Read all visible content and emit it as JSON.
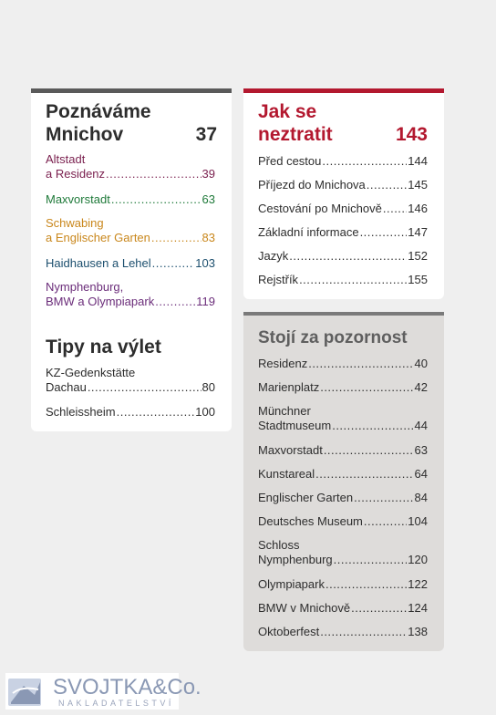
{
  "colors": {
    "left_bar": "#5a5a5a",
    "right_bar": "#b3182f",
    "gray_bar": "#7a7a7a",
    "text_dark": "#2d2d2d",
    "accent_red": "#b3182f",
    "altstadt": "#7a1f4e",
    "maxvorstadt": "#1f7a3a",
    "schwabing": "#c9871c",
    "haidhausen": "#1c4f6e",
    "nymphenburg": "#6b2d7a"
  },
  "left_card": {
    "title_line1": "Poznáváme",
    "title_line2": "Mnichov",
    "title_page": "37",
    "entries": [
      {
        "line1": "Altstadt",
        "line2": "a Residenz",
        "page": "39"
      },
      {
        "line1": "Maxvorstadt",
        "page": "63"
      },
      {
        "line1": "Schwabing",
        "line2": "a Englischer Garten",
        "page": "83"
      },
      {
        "line1": "Haidhausen a Lehel",
        "page": "103"
      },
      {
        "line1": "Nymphenburg,",
        "line2": "BMW a Olympiapark",
        "page": "119"
      }
    ],
    "tips_title": "Tipy na výlet",
    "tips": [
      {
        "line1": "KZ-Gedenkstätte",
        "line2": "Dachau",
        "page": "80"
      },
      {
        "line1": "Schleissheim",
        "page": "100"
      }
    ]
  },
  "right_card": {
    "title_line1": "Jak se",
    "title_line2": "neztratit",
    "title_page": "143",
    "entries": [
      {
        "line1": "Před cestou",
        "page": "144"
      },
      {
        "line1": "Příjezd do Mnichova",
        "page": "145"
      },
      {
        "line1": "Cestování po Mnichově",
        "page": "146"
      },
      {
        "line1": "Základní informace",
        "page": "147"
      },
      {
        "line1": "Jazyk",
        "page": "152"
      },
      {
        "line1": "Rejstřík",
        "page": "155"
      }
    ]
  },
  "gray_card": {
    "title": "Stojí za pozornost",
    "entries": [
      {
        "line1": "Residenz",
        "page": "40"
      },
      {
        "line1": "Marienplatz",
        "page": "42"
      },
      {
        "line1": "Münchner",
        "line2": "Stadtmuseum",
        "page": "44"
      },
      {
        "line1": "Maxvorstadt",
        "page": "63"
      },
      {
        "line1": "Kunstareal",
        "page": "64"
      },
      {
        "line1": "Englischer Garten",
        "page": "84"
      },
      {
        "line1": "Deutsches Museum",
        "page": "104"
      },
      {
        "line1": "Schloss",
        "line2": "Nymphenburg",
        "page": "120"
      },
      {
        "line1": "Olympiapark",
        "page": "122"
      },
      {
        "line1": "BMW v Mnichově",
        "page": "124"
      },
      {
        "line1": "Oktoberfest",
        "page": "138"
      }
    ]
  },
  "logo": {
    "name": "SVOJTKA&Co.",
    "sub": "NAKLADATELSTVÍ"
  }
}
